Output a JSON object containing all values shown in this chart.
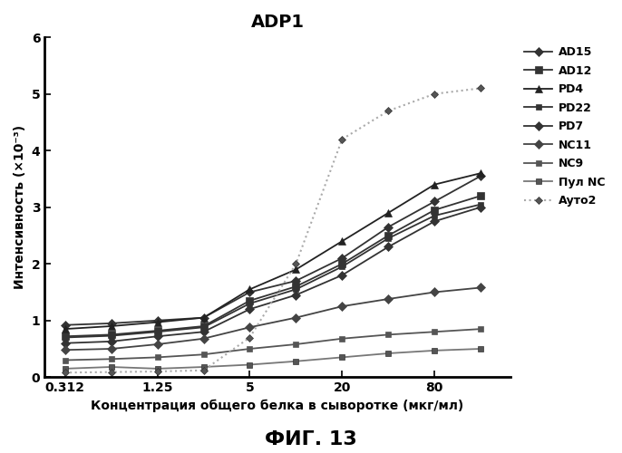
{
  "title": "ADP1",
  "xlabel": "Концентрация общего белка в сыворотке (мкг/мл)",
  "ylabel": "Интенсивность (×10⁻³)",
  "fig_label": "ФИГ. 13",
  "x_ticks": [
    0.312,
    1.25,
    5,
    20,
    80
  ],
  "x_tick_labels": [
    "0.312",
    "1.25",
    "5",
    "20",
    "80"
  ],
  "ylim": [
    0,
    6
  ],
  "yticks": [
    0,
    1,
    2,
    3,
    4,
    5,
    6
  ],
  "series": [
    {
      "name": "AD15",
      "x": [
        0.312,
        0.625,
        1.25,
        2.5,
        5,
        10,
        20,
        40,
        80,
        160
      ],
      "y": [
        0.92,
        0.95,
        1.0,
        1.05,
        1.5,
        1.7,
        2.1,
        2.65,
        3.1,
        3.55
      ],
      "color": "#333333",
      "linestyle": "-",
      "marker": "D",
      "markersize": 5,
      "linewidth": 1.3,
      "dotted_line": false
    },
    {
      "name": "AD12",
      "x": [
        0.312,
        0.625,
        1.25,
        2.5,
        5,
        10,
        20,
        40,
        80,
        160
      ],
      "y": [
        0.72,
        0.75,
        0.82,
        0.9,
        1.35,
        1.6,
        2.0,
        2.5,
        2.95,
        3.2
      ],
      "color": "#333333",
      "linestyle": "-",
      "marker": "s",
      "markersize": 6,
      "linewidth": 1.3,
      "dotted_line": false
    },
    {
      "name": "PD4",
      "x": [
        0.312,
        0.625,
        1.25,
        2.5,
        5,
        10,
        20,
        40,
        80,
        160
      ],
      "y": [
        0.85,
        0.9,
        0.97,
        1.05,
        1.55,
        1.9,
        2.4,
        2.9,
        3.4,
        3.6
      ],
      "color": "#222222",
      "linestyle": "-",
      "marker": "^",
      "markersize": 6,
      "linewidth": 1.3,
      "dotted_line": false
    },
    {
      "name": "PD22",
      "x": [
        0.312,
        0.625,
        1.25,
        2.5,
        5,
        10,
        20,
        40,
        80,
        160
      ],
      "y": [
        0.7,
        0.73,
        0.8,
        0.88,
        1.3,
        1.55,
        1.95,
        2.45,
        2.85,
        3.05
      ],
      "color": "#333333",
      "linestyle": "-",
      "marker": "s",
      "markersize": 5,
      "linewidth": 1.3,
      "dotted_line": false
    },
    {
      "name": "PD7",
      "x": [
        0.312,
        0.625,
        1.25,
        2.5,
        5,
        10,
        20,
        40,
        80,
        160
      ],
      "y": [
        0.6,
        0.63,
        0.72,
        0.8,
        1.2,
        1.45,
        1.8,
        2.3,
        2.75,
        3.0
      ],
      "color": "#333333",
      "linestyle": "-",
      "marker": "D",
      "markersize": 5,
      "linewidth": 1.3,
      "dotted_line": false
    },
    {
      "name": "NC11",
      "x": [
        0.312,
        0.625,
        1.25,
        2.5,
        5,
        10,
        20,
        40,
        80,
        160
      ],
      "y": [
        0.48,
        0.5,
        0.58,
        0.68,
        0.88,
        1.05,
        1.25,
        1.38,
        1.5,
        1.58
      ],
      "color": "#444444",
      "linestyle": "-",
      "marker": "D",
      "markersize": 5,
      "linewidth": 1.3,
      "dotted_line": false
    },
    {
      "name": "NC9",
      "x": [
        0.312,
        0.625,
        1.25,
        2.5,
        5,
        10,
        20,
        40,
        80,
        160
      ],
      "y": [
        0.3,
        0.32,
        0.35,
        0.4,
        0.5,
        0.58,
        0.68,
        0.75,
        0.8,
        0.85
      ],
      "color": "#555555",
      "linestyle": "-",
      "marker": "s",
      "markersize": 5,
      "linewidth": 1.3,
      "dotted_line": false
    },
    {
      "name": "Пул NC",
      "x": [
        0.312,
        0.625,
        1.25,
        2.5,
        5,
        10,
        20,
        40,
        80,
        160
      ],
      "y": [
        0.15,
        0.18,
        0.15,
        0.18,
        0.22,
        0.28,
        0.35,
        0.42,
        0.47,
        0.5
      ],
      "color": "#777777",
      "linestyle": "-",
      "marker": "s",
      "markersize": 5,
      "linewidth": 1.3,
      "dotted_line": true
    },
    {
      "name": "Ауто2",
      "x": [
        0.312,
        0.625,
        1.25,
        2.5,
        5,
        10,
        20,
        40,
        80,
        160
      ],
      "y": [
        0.08,
        0.09,
        0.1,
        0.12,
        0.7,
        2.0,
        4.2,
        4.7,
        5.0,
        5.1
      ],
      "color": "#aaaaaa",
      "linestyle": ":",
      "marker": "D",
      "markersize": 4,
      "linewidth": 1.5,
      "dotted_line": true
    }
  ]
}
